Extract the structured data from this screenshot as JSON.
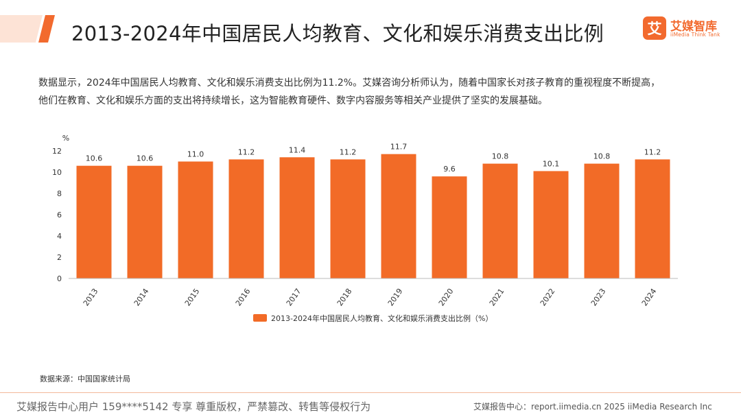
{
  "header": {
    "title": "2013-2024年中国居民人均教育、文化和娱乐消费支出比例"
  },
  "logo": {
    "name": "艾媒智库",
    "tagline": "iiMedia Think Tank",
    "mark_glyph": "艾",
    "color": "#f26a2e"
  },
  "description": {
    "line1": "数据显示，2024年中国居民人均教育、文化和娱乐消费支出比例为11.2%。艾媒咨询分析师认为，随着中国家长对孩子教育的重视程度不断提高，",
    "line2": "他们在教育、文化和娱乐方面的支出将持续增长，这为智能教育硬件、数字内容服务等相关产业提供了坚实的发展基础。"
  },
  "chart_data": {
    "type": "bar",
    "unit_label": "%",
    "categories": [
      "2013",
      "2014",
      "2015",
      "2016",
      "2017",
      "2018",
      "2019",
      "2020",
      "2021",
      "2022",
      "2023",
      "2024"
    ],
    "values": [
      10.6,
      10.6,
      11.0,
      11.2,
      11.4,
      11.2,
      11.7,
      9.6,
      10.8,
      10.1,
      10.8,
      11.2
    ],
    "value_labels": [
      "10.6",
      "10.6",
      "11.0",
      "11.2",
      "11.4",
      "11.2",
      "11.7",
      "9.6",
      "10.8",
      "10.1",
      "10.8",
      "11.2"
    ],
    "y_ticks": [
      0,
      2,
      4,
      6,
      8,
      10,
      12
    ],
    "ylim": [
      0,
      12
    ],
    "grid": false,
    "legend": {
      "label": "2013-2024年中国居民人均教育、文化和娱乐消费支出比例（%）",
      "position": "bottom-center"
    },
    "bar_color": "#f26b27"
  },
  "source": {
    "text": "数据来源：中国国家统计局"
  },
  "footer": {
    "left": "艾媒报告中心用户 159****5142 专享 尊重版权，严禁篡改、转售等侵权行为",
    "right": "艾媒报告中心：report.iimedia.cn  2025 iiMedia Research Inc"
  }
}
